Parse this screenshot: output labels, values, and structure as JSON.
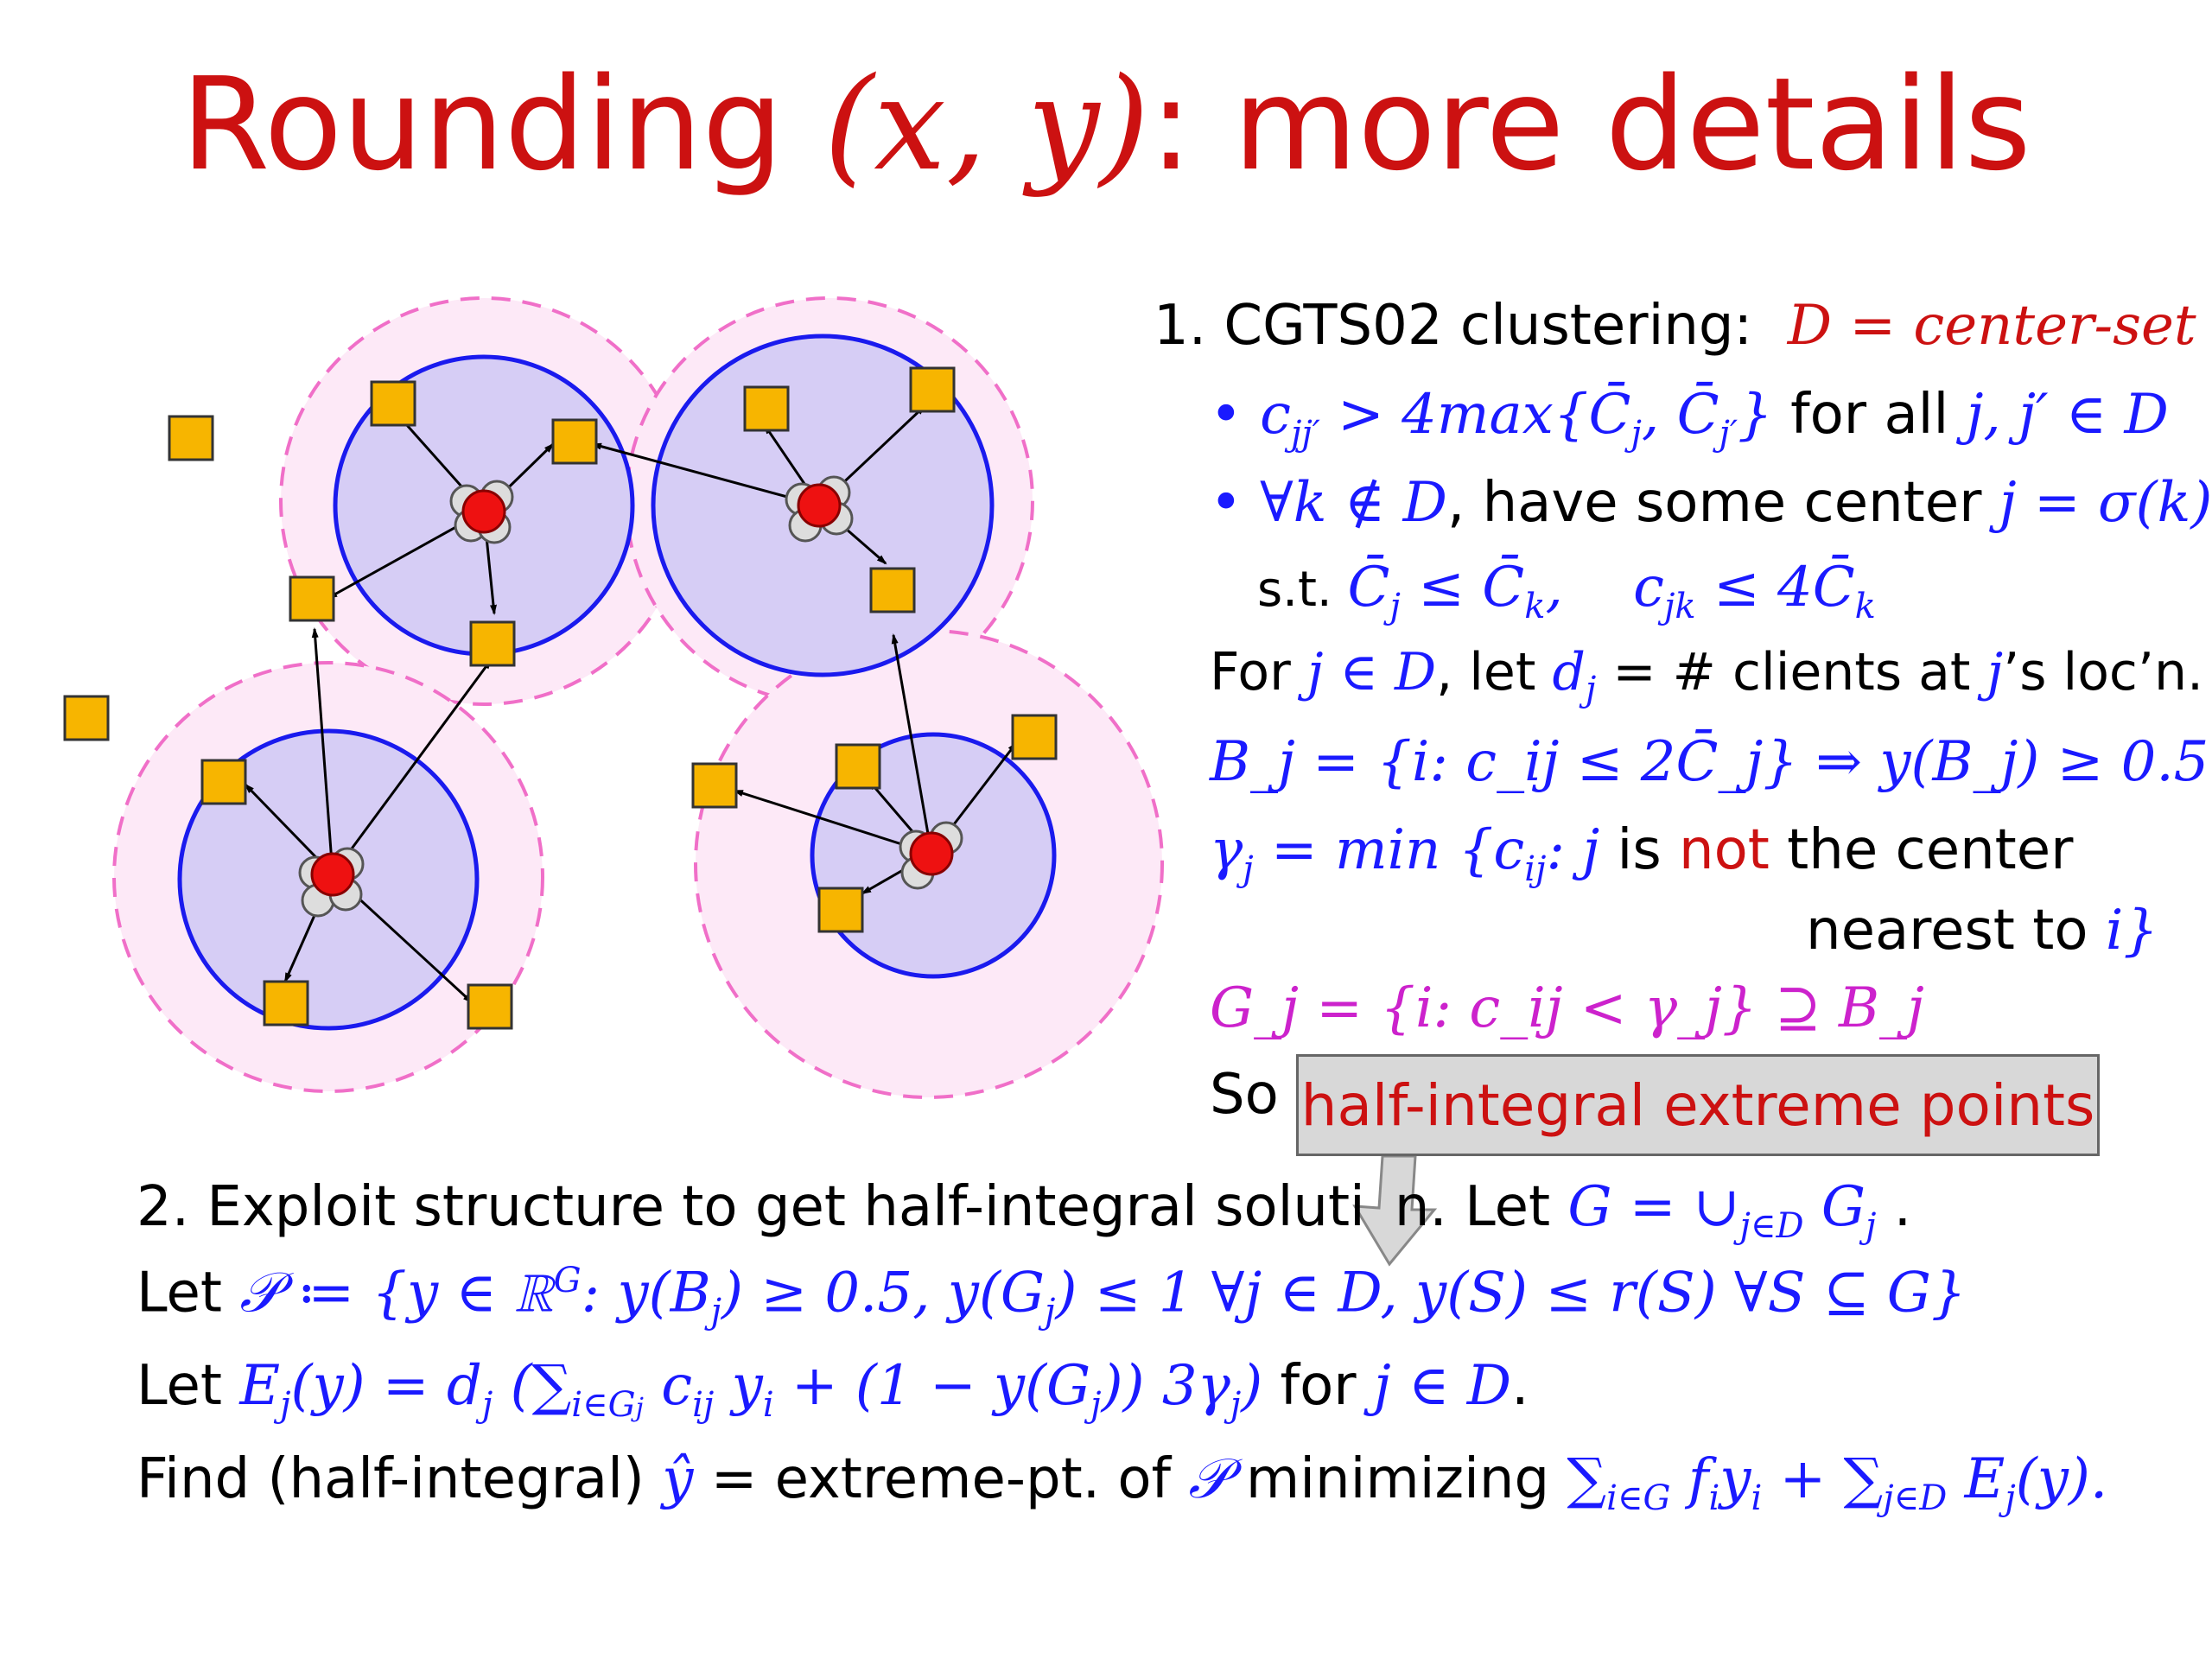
{
  "title": {
    "text": "Rounding ",
    "math": "(x, y)",
    "rest": ": more details"
  },
  "step1": {
    "heading": "1. CGTS02 clustering:",
    "heading_math": "D = center-set",
    "bullet1": {
      "math": "c",
      "sub": "jj′",
      "rest_math": " > 4max{C̄",
      "sub2": "j",
      "mid": ", C̄",
      "sub3": "j′",
      "end": "}",
      "text": " for all ",
      "math2": "j, j′ ∈ D"
    },
    "bullet2": {
      "math": "∀k ∉ D",
      "text": ", have some center ",
      "math2": "j = σ(k)"
    },
    "bullet2b": {
      "text": "s.t. ",
      "math": "C̄",
      "sub": "j",
      "mid": " ≤ C̄",
      "sub2": "k",
      "comma": ",",
      "math2": "c",
      "sub3": "jk",
      "end": " ≤ 4C̄",
      "sub4": "k"
    },
    "for_line": {
      "text1": "For ",
      "math1": "j ∈ D",
      "text2": ", let ",
      "math2": "d",
      "sub": "j",
      "text3": " = # clients at ",
      "math3": "j",
      "text4": "’s loc’n."
    },
    "b_line": "B_j = {i: c_ij ≤ 2C̄_j} ⇒ y(B_j) ≥ 0.5",
    "gamma_line": {
      "math": "γ",
      "sub": "j",
      "math2": " = min {c",
      "sub2": "ij",
      "math3": ": j",
      "text": " is ",
      "red": "not",
      "text2": " the center"
    },
    "gamma_line2": {
      "text": "nearest to ",
      "math": "i}"
    },
    "g_line": "G_j = {i: c_ij < γ_j} ⊇ B_j",
    "so_text": "So"
  },
  "callout": {
    "text": "half-integral extreme points"
  },
  "step2": {
    "line1_text": "2.  Exploit structure to get half-integral soluti",
    "line1_tail": "n.  Let ",
    "line1_math": "G = ∪",
    "line1_sub": "j∈D",
    "line1_math2": " G",
    "line1_sub2": "j",
    "line1_end": " .",
    "line2_text": "Let ",
    "line2_math": "𝒫 ≔ {y ∈ ℝ",
    "line2_sup": "G",
    "line2_math2": ":  y(B",
    "line2_sub": "j",
    "line2_math3": ") ≥ 0.5,  y(G",
    "line2_sub2": "j",
    "line2_math4": ") ≤ 1  ∀j ∈ D,   y(S) ≤ r(S)  ∀S ⊆ G}",
    "line3_text": "Let ",
    "line3_math": "E",
    "line3_sub": "j",
    "line3_math2": "(y) = d",
    "line3_sub2": "j",
    "line3_math3": " (∑",
    "line3_sub3": "i∈G",
    "line3_sub3b": "j",
    "line3_math4": " c",
    "line3_sub4": "ij",
    "line3_math5": " y",
    "line3_sub5": "i",
    "line3_math6": " + (1 − y(G",
    "line3_sub6": "j",
    "line3_math7": ")) 3γ",
    "line3_sub7": "j",
    "line3_math8": ")",
    "line3_text2": " for ",
    "line3_math9": "j ∈ D",
    "line3_end": ".",
    "line4_text": "Find (half-integral) ",
    "line4_math": "ŷ",
    "line4_text2": " = extreme-pt. of ",
    "line4_math2": "𝒫",
    "line4_text3": " minimizing ",
    "line4_math3": "∑",
    "line4_sub": "i∈G",
    "line4_math4": " f",
    "line4_sub2": "i",
    "line4_math5": "y",
    "line4_sub3": "i",
    "line4_math6": " + ∑",
    "line4_sub4": "j∈D",
    "line4_math7": " E",
    "line4_sub5": "j",
    "line4_math8": "(y)."
  },
  "colors": {
    "title": "#cc1111",
    "math": "#1a1aff",
    "cluster_fill": "#d6cdf5",
    "cluster_stroke": "#1a1aee",
    "halo_fill": "#fde9f7",
    "halo_stroke": "#f06fc8",
    "client": "#f7b500",
    "center": "#ee1111"
  }
}
